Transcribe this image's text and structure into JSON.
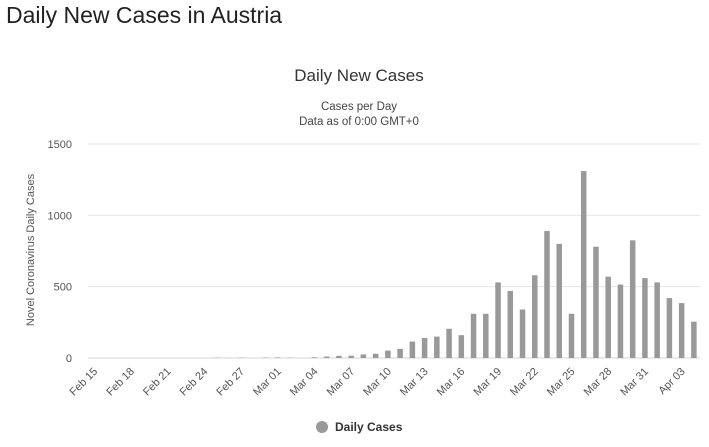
{
  "page": {
    "heading": "Daily New Cases in Austria"
  },
  "chart_data": {
    "type": "bar",
    "title": "Daily New Cases",
    "subtitle_lines": [
      "Cases per Day",
      "Data as of 0:00 GMT+0"
    ],
    "ylabel": "Novel Coronavirus Daily Cases",
    "ylim": [
      0,
      1500
    ],
    "yticks": [
      0,
      500,
      1000,
      1500
    ],
    "grid": true,
    "legend_position": "bottom-center",
    "bar_color": "#999999",
    "categories": [
      "Feb 15",
      "Feb 16",
      "Feb 17",
      "Feb 18",
      "Feb 19",
      "Feb 20",
      "Feb 21",
      "Feb 22",
      "Feb 23",
      "Feb 24",
      "Feb 25",
      "Feb 26",
      "Feb 27",
      "Feb 28",
      "Feb 29",
      "Mar 01",
      "Mar 02",
      "Mar 03",
      "Mar 04",
      "Mar 05",
      "Mar 06",
      "Mar 07",
      "Mar 08",
      "Mar 09",
      "Mar 10",
      "Mar 11",
      "Mar 12",
      "Mar 13",
      "Mar 14",
      "Mar 15",
      "Mar 16",
      "Mar 17",
      "Mar 18",
      "Mar 19",
      "Mar 20",
      "Mar 21",
      "Mar 22",
      "Mar 23",
      "Mar 24",
      "Mar 25",
      "Mar 26",
      "Mar 27",
      "Mar 28",
      "Mar 29",
      "Mar 30",
      "Mar 31",
      "Apr 01",
      "Apr 02",
      "Apr 03",
      "Apr 04"
    ],
    "xtick_labels": [
      "Feb 15",
      "Feb 18",
      "Feb 21",
      "Feb 24",
      "Feb 27",
      "Mar 01",
      "Mar 04",
      "Mar 07",
      "Mar 10",
      "Mar 13",
      "Mar 16",
      "Mar 19",
      "Mar 22",
      "Mar 25",
      "Mar 28",
      "Mar 31",
      "Apr 03"
    ],
    "series": [
      {
        "name": "Daily Cases",
        "values": [
          0,
          0,
          0,
          0,
          0,
          0,
          0,
          0,
          0,
          0,
          2,
          1,
          2,
          0,
          3,
          4,
          2,
          0,
          5,
          10,
          15,
          16,
          25,
          30,
          52,
          64,
          115,
          140,
          150,
          205,
          160,
          310,
          310,
          530,
          470,
          340,
          580,
          890,
          800,
          310,
          1310,
          780,
          570,
          515,
          825,
          560,
          530,
          420,
          385,
          255
        ]
      }
    ]
  }
}
